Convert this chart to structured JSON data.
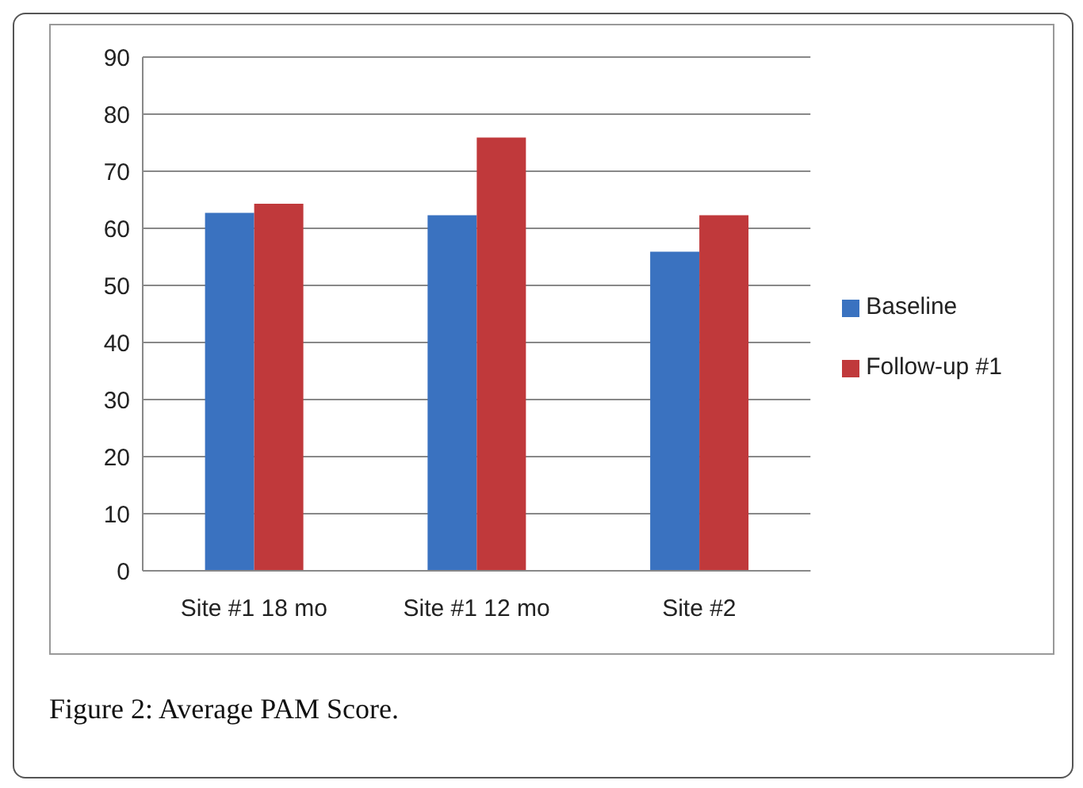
{
  "chart_data": {
    "type": "bar",
    "title": "Figure 2: Average PAM Score.",
    "categories": [
      "Site #1 18 mo",
      "Site #1 12 mo",
      "Site #2"
    ],
    "series": [
      {
        "name": "Baseline",
        "color": "#3a72c0",
        "values": [
          62.7,
          62.3,
          55.9
        ]
      },
      {
        "name": "Follow-up #1",
        "color": "#c0393b",
        "values": [
          64.3,
          75.9,
          62.3
        ]
      }
    ],
    "ylim": [
      0,
      90
    ],
    "yticks": [
      0,
      10,
      20,
      30,
      40,
      50,
      60,
      70,
      80,
      90
    ],
    "grid": "y",
    "legend": "right"
  }
}
